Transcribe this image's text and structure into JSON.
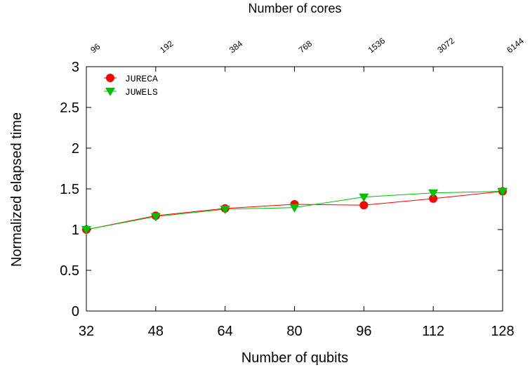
{
  "chart_data": {
    "type": "line",
    "x": [
      32,
      48,
      64,
      80,
      96,
      112,
      128
    ],
    "x_tick_labels": [
      "32",
      "48",
      "64",
      "80",
      "96",
      "112",
      "128"
    ],
    "xlim": [
      32,
      128
    ],
    "top_axis": {
      "label": "Number of cores",
      "tick_labels": [
        "96",
        "192",
        "384",
        "768",
        "1536",
        "3072",
        "6144"
      ]
    },
    "y_tick_labels": [
      "0",
      "0.5",
      "1",
      "1.5",
      "2",
      "2.5",
      "3"
    ],
    "y_ticks": [
      0,
      0.5,
      1,
      1.5,
      2,
      2.5,
      3
    ],
    "ylim": [
      0,
      3
    ],
    "xlabel": "Number of qubits",
    "ylabel": "Normalized elapsed time",
    "legend_position": "top-left",
    "series": [
      {
        "name": "JURECA",
        "color": "#ff0000",
        "marker": "circle",
        "values": [
          1.0,
          1.17,
          1.26,
          1.31,
          1.3,
          1.38,
          1.47
        ]
      },
      {
        "name": "JUWELS",
        "color": "#00c000",
        "marker": "triangle-down",
        "values": [
          1.0,
          1.16,
          1.25,
          1.27,
          1.4,
          1.45,
          1.47
        ]
      }
    ]
  }
}
